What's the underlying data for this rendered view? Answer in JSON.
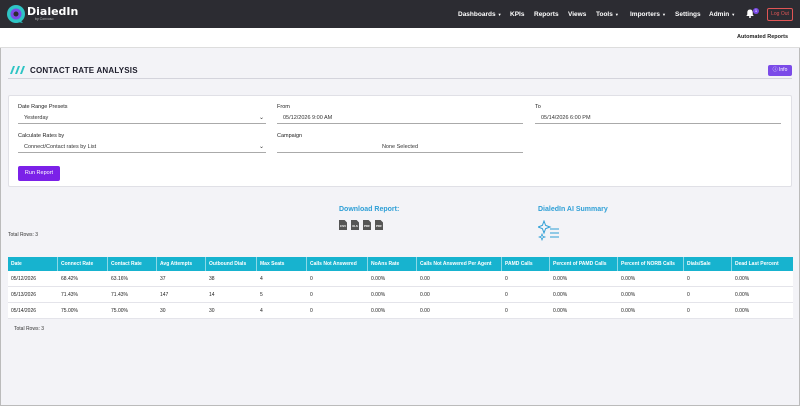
{
  "brand": {
    "name": "DialedIn",
    "sub": "by Convoso"
  },
  "nav": {
    "items": [
      {
        "label": "Dashboards",
        "caret": true
      },
      {
        "label": "KPIs",
        "caret": false
      },
      {
        "label": "Reports",
        "caret": false
      },
      {
        "label": "Views",
        "caret": false
      },
      {
        "label": "Tools",
        "caret": true
      },
      {
        "label": "Importers",
        "caret": true
      },
      {
        "label": "Settings",
        "caret": false
      },
      {
        "label": "Admin",
        "caret": true
      }
    ],
    "notification_count": "1",
    "logout_label": "Log Out"
  },
  "subbar": {
    "automated_reports": "Automated Reports"
  },
  "page": {
    "title": "CONTACT RATE ANALYSIS",
    "info_label": "Info"
  },
  "form": {
    "date_range_label": "Date Range Presets",
    "date_range_value": "Yesterday",
    "from_label": "From",
    "from_value": "05/12/2026 9:00 AM",
    "to_label": "To",
    "to_value": "05/14/2026 6:00 PM",
    "calc_label": "Calculate Rates by",
    "calc_value": "Connect/Contact rates by List",
    "campaign_label": "Campaign",
    "campaign_value": "None Selected",
    "run_label": "Run Report"
  },
  "download": {
    "title": "Download Report:",
    "formats": [
      "CSV",
      "XLS",
      "PDF",
      "PDF"
    ]
  },
  "ai": {
    "title": "DialedIn AI Summary"
  },
  "total_rows_top": "Total Rows: 3",
  "total_rows_bottom": "Total Rows: 3",
  "table": {
    "headers": [
      "Date",
      "Connect Rate",
      "Contact Rate",
      "Avg Attempts",
      "Outbound Dials",
      "Max Seats",
      "Calls Not Answered",
      "NoAns Rate",
      "Calls Not Answered Per Agent",
      "PAMD Calls",
      "Percent of PAMD Calls",
      "Percent of NORB Calls",
      "Dials/Sale",
      "Dead Last Percent"
    ],
    "rows": [
      [
        "05/12/2026",
        "68.42%",
        "63.16%",
        "37",
        "38",
        "4",
        "0",
        "0.00%",
        "0.00",
        "0",
        "0.00%",
        "0.00%",
        "0",
        "0.00%"
      ],
      [
        "05/13/2026",
        "71.43%",
        "71.43%",
        "147",
        "14",
        "5",
        "0",
        "0.00%",
        "0.00",
        "0",
        "0.00%",
        "0.00%",
        "0",
        "0.00%"
      ],
      [
        "05/14/2026",
        "75.00%",
        "75.00%",
        "30",
        "30",
        "4",
        "0",
        "0.00%",
        "0.00",
        "0",
        "0.00%",
        "0.00%",
        "0",
        "0.00%"
      ]
    ]
  }
}
